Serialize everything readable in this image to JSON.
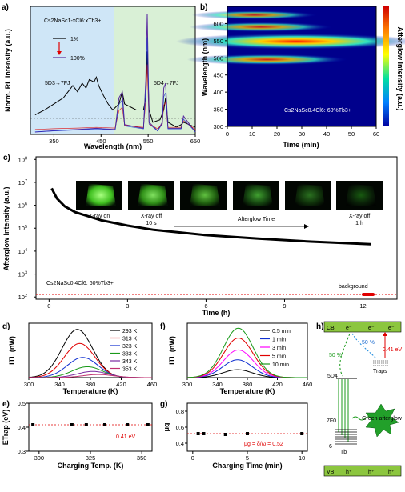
{
  "panels": {
    "a": {
      "label": "a)",
      "ylabel": "Norm. RL Intensity (a.u.)",
      "xlabel": "Wavelength (nm)",
      "sample": "Cs2NaSc1-xCl6:xTb3+",
      "legend_1": "1%",
      "legend_2": "100%",
      "ann_left": "5D3→7FJ",
      "ann_right": "5D4→7FJ",
      "xticks": [
        "350",
        "450",
        "550",
        "650"
      ]
    },
    "b": {
      "label": "b)",
      "ylabel": "Wavelength (nm)",
      "xlabel": "Time (min)",
      "colorbar": "Afterglow Intensity (a.u.)",
      "sample": "Cs2NaSc0.4Cl6: 60%Tb3+",
      "yticks": [
        "600",
        "550",
        "500",
        "450",
        "400",
        "350",
        "300"
      ],
      "xticks": [
        "0",
        "10",
        "20",
        "30",
        "40",
        "50",
        "60"
      ]
    },
    "c": {
      "label": "c)",
      "ylabel": "Afterglow Intensity (a.u.)",
      "xlabel": "Time (h)",
      "sample": "Cs2NaSc0.4Cl6: 60%Tb3+",
      "background": "background",
      "yticks": [
        "10^8",
        "10^7",
        "10^6",
        "10^5",
        "10^4",
        "10^3",
        "10^2"
      ],
      "xticks": [
        "0",
        "3",
        "6",
        "9",
        "12"
      ],
      "photo_labels": [
        "X-ray on",
        "X-ray off\n10 s",
        "Afterglow Time",
        "X-ray off\n1 h"
      ]
    },
    "d": {
      "label": "d)",
      "ylabel": "ITL (nW)",
      "xlabel": "Temperature (K)",
      "legend": [
        "293 K",
        "313 K",
        "323 K",
        "333 K",
        "343 K",
        "353 K"
      ],
      "xticks": [
        "300",
        "340",
        "380",
        "420",
        "460"
      ]
    },
    "e": {
      "label": "e)",
      "ylabel": "ETrap (eV)",
      "xlabel": "Charging Temp. (K)",
      "annotation": "0.41 eV",
      "yticks": [
        "0.5",
        "0.4",
        "0.3"
      ],
      "xticks": [
        "300",
        "325",
        "350"
      ]
    },
    "f": {
      "label": "f)",
      "ylabel": "ITL (nW)",
      "xlabel": "Temperature (K)",
      "legend": [
        "0.5 min",
        "1 min",
        "3 min",
        "5 min",
        "10 min"
      ],
      "xticks": [
        "300",
        "340",
        "380",
        "420",
        "460"
      ]
    },
    "g": {
      "label": "g)",
      "ylabel": "μg",
      "xlabel": "Charging Time (min)",
      "annotation": "μg = δ/ω = 0.52",
      "yticks": [
        "0.8",
        "0.6",
        "0.4"
      ],
      "xticks": [
        "0",
        "5",
        "10"
      ]
    },
    "h": {
      "label": "h)",
      "cb": "CB",
      "vb": "VB",
      "pct_left": "50 %",
      "pct_right": "50 %",
      "energy": "0.41 eV",
      "traps": "Traps",
      "level_d4": "5D4",
      "level_f": "7F0",
      "level_f_sub": "6",
      "tb": "Tb",
      "star_text": "Green afterglow"
    }
  },
  "chart_data": [
    {
      "panel": "a",
      "type": "line",
      "series": [
        {
          "name": "1%",
          "color": "#000000",
          "x": [
            310,
            330,
            350,
            370,
            380,
            390,
            400,
            410,
            418,
            425,
            435,
            440,
            445,
            455,
            465,
            475,
            488,
            495,
            500,
            525,
            540,
            545,
            548,
            552,
            560,
            575,
            583,
            587,
            592,
            610,
            620,
            625,
            650
          ],
          "y": [
            0.16,
            0.2,
            0.25,
            0.3,
            0.35,
            0.4,
            0.35,
            0.42,
            0.38,
            0.45,
            0.43,
            0.47,
            0.4,
            0.32,
            0.25,
            0.2,
            0.25,
            0.35,
            0.25,
            0.2,
            0.2,
            0.3,
            0.68,
            0.2,
            0.1,
            0.12,
            0.2,
            0.3,
            0.1,
            0.06,
            0.08,
            0.1,
            0.06
          ]
        },
        {
          "name": "100%",
          "color": "#5a2ca0",
          "x": [
            310,
            350,
            400,
            440,
            480,
            488,
            495,
            500,
            540,
            545,
            548,
            552,
            570,
            580,
            583,
            587,
            592,
            620,
            625,
            650
          ],
          "y": [
            0.02,
            0.03,
            0.04,
            0.05,
            0.04,
            0.3,
            0.35,
            0.08,
            0.05,
            0.45,
            0.99,
            0.1,
            0.03,
            0.1,
            0.38,
            0.42,
            0.05,
            0.05,
            0.15,
            0.02
          ]
        }
      ],
      "xlim": [
        300,
        650
      ],
      "ylim": [
        0,
        1.05
      ]
    },
    {
      "panel": "b",
      "type": "heatmap",
      "bands_nm": [
        625,
        590,
        548,
        495
      ],
      "relative_intensity": [
        0.35,
        0.45,
        1.0,
        0.55
      ],
      "xlim": [
        0,
        60
      ],
      "ylim": [
        300,
        650
      ]
    },
    {
      "panel": "c",
      "type": "line",
      "scale": "log",
      "x_h": [
        0.1,
        0.3,
        0.6,
        1,
        2,
        3,
        4,
        6,
        8,
        10,
        12.3
      ],
      "y": [
        5500000.0,
        2000000.0,
        900000.0,
        500000.0,
        220000.0,
        130000.0,
        85000.0,
        50000.0,
        35000.0,
        26000.0,
        20000.0
      ],
      "background_level": 100.0,
      "xlim": [
        -0.5,
        13.3
      ],
      "ylim": [
        80,
        130000000.0
      ]
    },
    {
      "panel": "d",
      "type": "line",
      "peaks": [
        {
          "name": "293 K",
          "peak_T": 363,
          "I": 31,
          "color": "#000000"
        },
        {
          "name": "313 K",
          "peak_T": 366,
          "I": 22,
          "color": "#e00000"
        },
        {
          "name": "323 K",
          "peak_T": 370,
          "I": 13,
          "color": "#1030d0"
        },
        {
          "name": "333 K",
          "peak_T": 376,
          "I": 7,
          "color": "#1a9a1a"
        },
        {
          "name": "343 K",
          "peak_T": 383,
          "I": 4,
          "color": "#7a2aa0"
        },
        {
          "name": "353 K",
          "peak_T": 390,
          "I": 2,
          "color": "#c03070"
        }
      ],
      "xlim": [
        300,
        460
      ],
      "ylim": [
        0,
        35
      ]
    },
    {
      "panel": "e",
      "type": "scatter",
      "x": [
        297,
        316,
        323,
        332,
        343,
        353
      ],
      "y": [
        0.41,
        0.41,
        0.41,
        0.41,
        0.41,
        0.41
      ],
      "fit": 0.41,
      "xlim": [
        295,
        355
      ],
      "ylim": [
        0.3,
        0.5
      ]
    },
    {
      "panel": "f",
      "type": "line",
      "peaks": [
        {
          "name": "0.5 min",
          "peak_T": 367,
          "I": 8,
          "color": "#000000"
        },
        {
          "name": "1 min",
          "peak_T": 367,
          "I": 18,
          "color": "#1030d0"
        },
        {
          "name": "3 min",
          "peak_T": 368,
          "I": 28,
          "color": "#ff00ff"
        },
        {
          "name": "5 min",
          "peak_T": 368,
          "I": 40,
          "color": "#e00000"
        },
        {
          "name": "10 min",
          "peak_T": 368,
          "I": 50,
          "color": "#1a9a1a"
        }
      ],
      "xlim": [
        300,
        460
      ],
      "ylim": [
        0,
        55
      ]
    },
    {
      "panel": "g",
      "type": "scatter",
      "x": [
        0.5,
        1,
        3,
        5,
        10
      ],
      "y": [
        0.52,
        0.52,
        0.51,
        0.52,
        0.52
      ],
      "fit": 0.52,
      "xlim": [
        -0.5,
        10.5
      ],
      "ylim": [
        0.3,
        0.9
      ]
    }
  ]
}
